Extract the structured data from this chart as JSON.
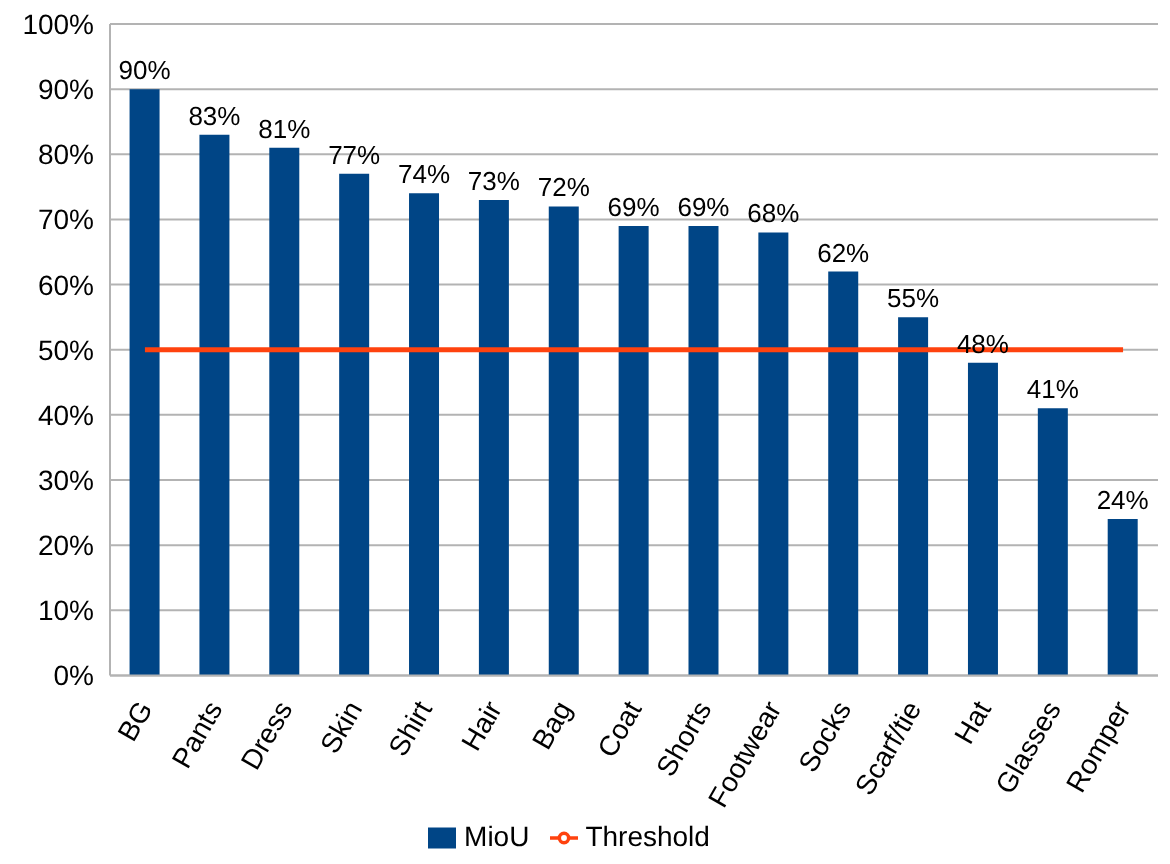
{
  "chart_data": {
    "type": "bar",
    "categories": [
      "BG",
      "Pants",
      "Dress",
      "Skin",
      "Shirt",
      "Hair",
      "Bag",
      "Coat",
      "Shorts",
      "Footwear",
      "Socks",
      "Scarf/tie",
      "Hat",
      "Glasses",
      "Romper"
    ],
    "series": [
      {
        "name": "MioU",
        "color": "#004586",
        "values": [
          90,
          83,
          81,
          77,
          74,
          73,
          72,
          69,
          69,
          68,
          62,
          55,
          48,
          41,
          24
        ],
        "value_labels": [
          "90%",
          "83%",
          "81%",
          "77%",
          "74%",
          "73%",
          "72%",
          "69%",
          "69%",
          "68%",
          "62%",
          "55%",
          "48%",
          "41%",
          "24%"
        ]
      },
      {
        "name": "Threshold",
        "type": "line",
        "color": "#ff420e",
        "values": [
          50,
          50,
          50,
          50,
          50,
          50,
          50,
          50,
          50,
          50,
          50,
          50,
          50,
          50,
          50
        ]
      }
    ],
    "ylim": [
      0,
      100
    ],
    "yticks": [
      {
        "value": 0,
        "label": "0%"
      },
      {
        "value": 10,
        "label": "10%"
      },
      {
        "value": 20,
        "label": "20%"
      },
      {
        "value": 30,
        "label": "30%"
      },
      {
        "value": 40,
        "label": "40%"
      },
      {
        "value": 50,
        "label": "50%"
      },
      {
        "value": 60,
        "label": "60%"
      },
      {
        "value": 70,
        "label": "70%"
      },
      {
        "value": 80,
        "label": "80%"
      },
      {
        "value": 90,
        "label": "90%"
      },
      {
        "value": 100,
        "label": "100%"
      }
    ],
    "grid": "y",
    "legend": "bottom",
    "marker": "none",
    "line_style": "solid"
  }
}
